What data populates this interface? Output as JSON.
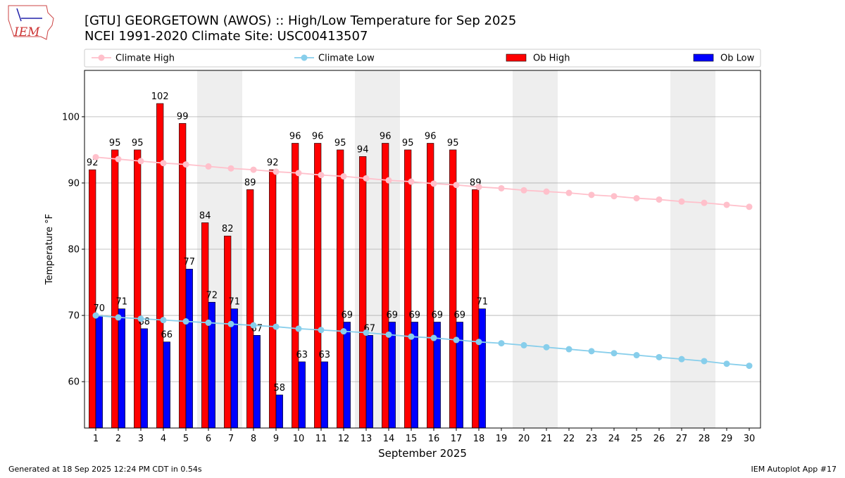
{
  "logo_text": "IEM",
  "footer": {
    "left": "Generated at 18 Sep 2025 12:24 PM CDT in 0.54s",
    "right": "IEM Autoplot App #17"
  },
  "chart_data": {
    "type": "bar",
    "title": "[GTU] GEORGETOWN (AWOS) :: High/Low Temperature for Sep 2025",
    "subtitle": "NCEI 1991-2020 Climate Site: USC00413507",
    "x_label": "September 2025",
    "y_label": "Temperature °F",
    "x": [
      1,
      2,
      3,
      4,
      5,
      6,
      7,
      8,
      9,
      10,
      11,
      12,
      13,
      14,
      15,
      16,
      17,
      18,
      19,
      20,
      21,
      22,
      23,
      24,
      25,
      26,
      27,
      28,
      29,
      30
    ],
    "xlim": [
      0.5,
      30.5
    ],
    "xticks": [
      1,
      2,
      3,
      4,
      5,
      6,
      7,
      8,
      9,
      10,
      11,
      12,
      13,
      14,
      15,
      16,
      17,
      18,
      19,
      20,
      21,
      22,
      23,
      24,
      25,
      26,
      27,
      28,
      29,
      30
    ],
    "ylim": [
      53,
      107
    ],
    "yticks": [
      60,
      70,
      80,
      90,
      100
    ],
    "grid": true,
    "legend": "top",
    "series": [
      {
        "name": "Climate High",
        "type": "line",
        "color": "#ffc0cb",
        "values": [
          93.9,
          93.6,
          93.3,
          93.0,
          92.8,
          92.5,
          92.2,
          92.0,
          91.7,
          91.5,
          91.2,
          91.0,
          90.7,
          90.4,
          90.2,
          89.9,
          89.7,
          89.4,
          89.2,
          88.9,
          88.7,
          88.5,
          88.2,
          88.0,
          87.7,
          87.5,
          87.2,
          87.0,
          86.7,
          86.4
        ]
      },
      {
        "name": "Climate Low",
        "type": "line",
        "color": "#87ceeb",
        "values": [
          70.0,
          69.7,
          69.5,
          69.3,
          69.1,
          68.9,
          68.7,
          68.5,
          68.3,
          68.0,
          67.8,
          67.6,
          67.4,
          67.1,
          66.8,
          66.6,
          66.3,
          66.0,
          65.8,
          65.5,
          65.2,
          64.9,
          64.6,
          64.3,
          64.0,
          63.7,
          63.4,
          63.1,
          62.7,
          62.4
        ]
      },
      {
        "name": "Ob High",
        "type": "bar",
        "color": "#ff0000",
        "values": [
          92,
          95,
          95,
          102,
          99,
          84,
          82,
          89,
          92,
          96,
          96,
          95,
          94,
          96,
          95,
          96,
          95,
          89,
          null,
          null,
          null,
          null,
          null,
          null,
          null,
          null,
          null,
          null,
          null,
          null
        ]
      },
      {
        "name": "Ob Low",
        "type": "bar",
        "color": "#0000ff",
        "values": [
          70,
          71,
          68,
          66,
          77,
          72,
          71,
          67,
          58,
          63,
          63,
          69,
          67,
          69,
          69,
          69,
          69,
          71,
          null,
          null,
          null,
          null,
          null,
          null,
          null,
          null,
          null,
          null,
          null,
          null
        ]
      }
    ]
  }
}
